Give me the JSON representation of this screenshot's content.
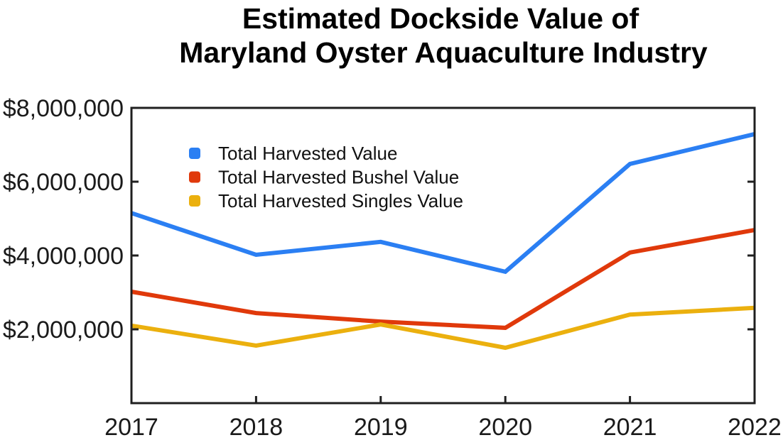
{
  "chart_data": {
    "type": "line",
    "title": [
      "Estimated Dockside Value of",
      "Maryland Oyster Aquaculture Industry"
    ],
    "xlabel": "",
    "ylabel": "",
    "x": [
      "2017",
      "2018",
      "2019",
      "2020",
      "2021",
      "2022"
    ],
    "ylim": [
      0,
      8000000
    ],
    "yticks": [
      {
        "value": 2000000,
        "label": "$2,000,000"
      },
      {
        "value": 4000000,
        "label": "$4,000,000"
      },
      {
        "value": 6000000,
        "label": "$6,000,000"
      },
      {
        "value": 8000000,
        "label": "$8,000,000"
      }
    ],
    "grid": false,
    "legend": "upper-left",
    "series": [
      {
        "name": "Total Harvested Value",
        "color": "#2B7FF3",
        "values": [
          5150000,
          4020000,
          4370000,
          3560000,
          6480000,
          7290000
        ]
      },
      {
        "name": "Total Harvested Bushel Value",
        "color": "#E0390B",
        "values": [
          3020000,
          2440000,
          2210000,
          2040000,
          4080000,
          4690000
        ]
      },
      {
        "name": "Total Harvested Singles Value",
        "color": "#EBB00E",
        "values": [
          2100000,
          1560000,
          2130000,
          1500000,
          2400000,
          2580000
        ]
      }
    ]
  }
}
